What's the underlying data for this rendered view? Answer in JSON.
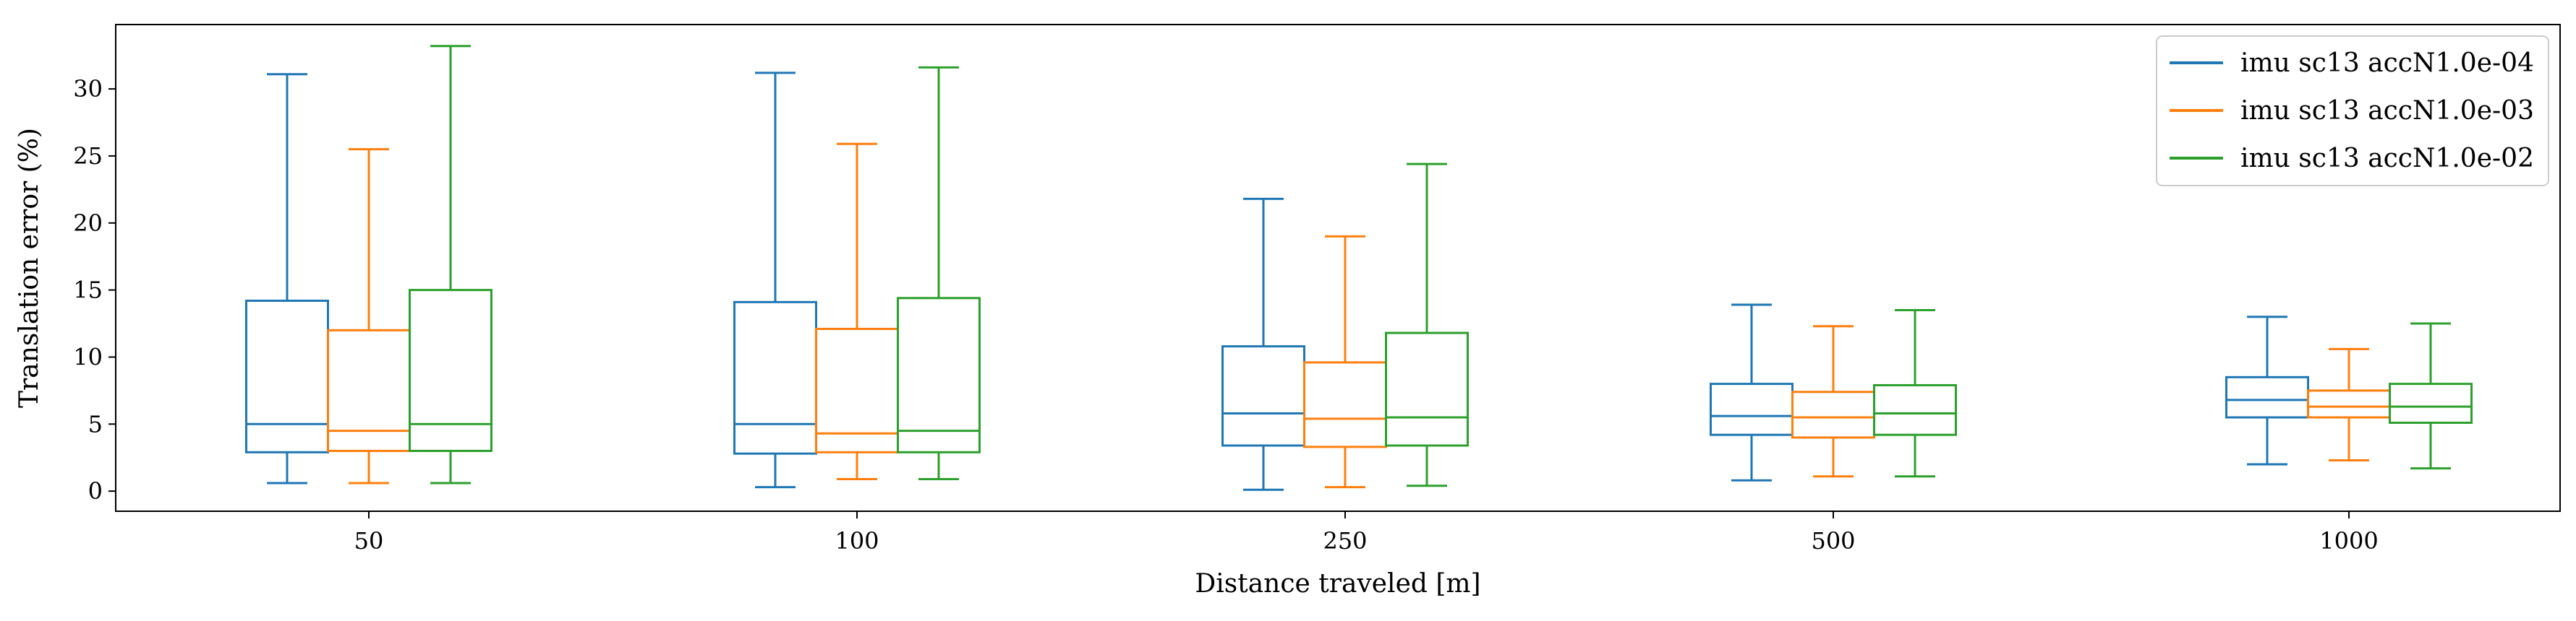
{
  "chart_data": {
    "type": "box",
    "xlabel": "Distance traveled [m]",
    "ylabel": "Translation error (%)",
    "ylim": [
      -1.5,
      34.8
    ],
    "yticks": [
      0,
      5,
      10,
      15,
      20,
      25,
      30
    ],
    "categories": [
      "50",
      "100",
      "250",
      "500",
      "1000"
    ],
    "legend_position": "top-right",
    "grid": false,
    "series": [
      {
        "name": "imu sc13 accN1.0e-04",
        "color": "#1f77b4",
        "boxes": [
          {
            "whislo": 0.6,
            "q1": 2.9,
            "med": 5.0,
            "q3": 14.2,
            "whishi": 31.1
          },
          {
            "whislo": 0.3,
            "q1": 2.8,
            "med": 5.0,
            "q3": 14.1,
            "whishi": 31.2
          },
          {
            "whislo": 0.1,
            "q1": 3.4,
            "med": 5.8,
            "q3": 10.8,
            "whishi": 21.8
          },
          {
            "whislo": 0.8,
            "q1": 4.2,
            "med": 5.6,
            "q3": 8.0,
            "whishi": 13.9
          },
          {
            "whislo": 2.0,
            "q1": 5.5,
            "med": 6.8,
            "q3": 8.5,
            "whishi": 13.0
          }
        ]
      },
      {
        "name": "imu sc13 accN1.0e-03",
        "color": "#ff7f0e",
        "boxes": [
          {
            "whislo": 0.6,
            "q1": 3.0,
            "med": 4.5,
            "q3": 12.0,
            "whishi": 25.5
          },
          {
            "whislo": 0.9,
            "q1": 2.9,
            "med": 4.3,
            "q3": 12.1,
            "whishi": 25.9
          },
          {
            "whislo": 0.3,
            "q1": 3.3,
            "med": 5.4,
            "q3": 9.6,
            "whishi": 19.0
          },
          {
            "whislo": 1.1,
            "q1": 4.0,
            "med": 5.5,
            "q3": 7.4,
            "whishi": 12.3
          },
          {
            "whislo": 2.3,
            "q1": 5.5,
            "med": 6.3,
            "q3": 7.5,
            "whishi": 10.6
          }
        ]
      },
      {
        "name": "imu sc13 accN1.0e-02",
        "color": "#2ca02c",
        "boxes": [
          {
            "whislo": 0.6,
            "q1": 3.0,
            "med": 5.0,
            "q3": 15.0,
            "whishi": 33.2
          },
          {
            "whislo": 0.9,
            "q1": 2.9,
            "med": 4.5,
            "q3": 14.4,
            "whishi": 31.6
          },
          {
            "whislo": 0.4,
            "q1": 3.4,
            "med": 5.5,
            "q3": 11.8,
            "whishi": 24.4
          },
          {
            "whislo": 1.1,
            "q1": 4.2,
            "med": 5.8,
            "q3": 7.9,
            "whishi": 13.5
          },
          {
            "whislo": 1.7,
            "q1": 5.1,
            "med": 6.3,
            "q3": 8.0,
            "whishi": 12.5
          }
        ]
      }
    ]
  }
}
